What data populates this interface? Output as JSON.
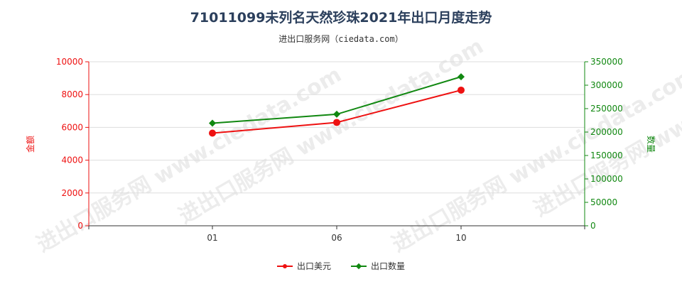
{
  "title": "71011099未列名天然珍珠2021年出口月度走势",
  "subtitle": "进出口服务网（ciedata.com）",
  "watermark": "进出口服务网 www.ciedata.com",
  "chart_data": {
    "type": "line",
    "categories": [
      "01",
      "06",
      "10"
    ],
    "ylabel_left": "金额",
    "ylabel_right": "数量",
    "ylim_left": [
      0,
      10000
    ],
    "ylim_right": [
      0,
      350000
    ],
    "yticks_left": [
      0,
      2000,
      4000,
      6000,
      8000,
      10000
    ],
    "yticks_right": [
      0,
      50000,
      100000,
      150000,
      200000,
      250000,
      300000,
      350000
    ],
    "grid": true,
    "legend_position": "bottom",
    "series": [
      {
        "name": "出口美元",
        "axis": "left",
        "color": "#ee1111",
        "marker": "circle",
        "values": [
          5650,
          6300,
          8270
        ]
      },
      {
        "name": "出口数量",
        "axis": "right",
        "color": "#118811",
        "marker": "diamond",
        "values": [
          219000,
          238000,
          318000
        ]
      }
    ]
  }
}
